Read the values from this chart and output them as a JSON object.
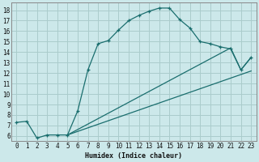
{
  "xlabel": "Humidex (Indice chaleur)",
  "bg_color": "#cce8ea",
  "grid_color": "#aacccc",
  "line_color": "#1a6e6e",
  "xlim": [
    -0.5,
    23.5
  ],
  "ylim": [
    5.5,
    18.7
  ],
  "xticks": [
    0,
    1,
    2,
    3,
    4,
    5,
    6,
    7,
    8,
    9,
    10,
    11,
    12,
    13,
    14,
    15,
    16,
    17,
    18,
    19,
    20,
    21,
    22,
    23
  ],
  "yticks": [
    6,
    7,
    8,
    9,
    10,
    11,
    12,
    13,
    14,
    15,
    16,
    17,
    18
  ],
  "curve1_x": [
    0,
    1,
    2,
    3,
    4,
    5,
    6,
    7,
    8,
    9,
    10,
    11,
    12,
    13,
    14,
    15,
    16,
    17,
    18,
    19,
    20,
    21,
    22,
    23
  ],
  "curve1_y": [
    7.3,
    7.4,
    5.8,
    6.1,
    6.1,
    6.1,
    8.4,
    12.3,
    14.8,
    15.1,
    16.1,
    17.0,
    17.5,
    17.9,
    18.2,
    18.2,
    17.1,
    16.3,
    15.0,
    14.8,
    14.5,
    14.3,
    12.3,
    13.5
  ],
  "curve2_x": [
    5,
    23
  ],
  "curve2_y": [
    6.1,
    12.2
  ],
  "curve3_x": [
    5,
    21,
    22,
    23
  ],
  "curve3_y": [
    6.1,
    14.4,
    12.3,
    13.5
  ],
  "xlabel_fontsize": 6.0,
  "tick_fontsize": 5.5
}
